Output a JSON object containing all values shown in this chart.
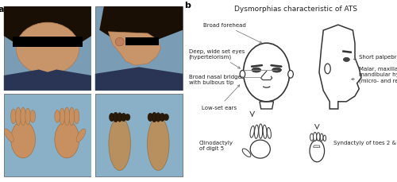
{
  "panel_a_label": "a",
  "panel_b_label": "b",
  "title": "Dysmorphias characteristic of ATS",
  "face_photo_color": "#8aa0b8",
  "face_photo_color2": "#7a90a8",
  "hand_photo_color": "#c8a882",
  "foot_photo_color": "#b89c78",
  "skin_color": "#d4a870",
  "hair_color": "#2a1a0a",
  "bg_color_top": "#6080a0",
  "bg_color_bottom": "#90b0c8",
  "text_color": "#222222",
  "line_color": "#333333",
  "fontsize_title": 6.5,
  "fontsize_labels": 5.0,
  "fontsize_panel": 8,
  "white": "#ffffff",
  "black": "#000000",
  "gray": "#888888"
}
